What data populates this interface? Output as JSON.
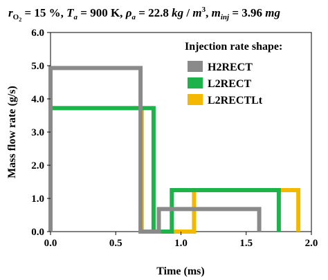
{
  "chart_data": {
    "type": "line",
    "title": "r_O2 = 15 %, T_a = 900 K, ρ_a = 22.8 kg / m^3, m_inj = 3.96 mg",
    "title_parts": {
      "r_main": "r",
      "r_sub": "O",
      "r_sub2": "2",
      "eq1": " = 15 %, ",
      "t_main": "T",
      "t_sub": "a",
      "eq2": " = 900 K, ",
      "rho_main": "ρ",
      "rho_sub": "a",
      "eq3": " = 22.8 ",
      "unit_kg": "kg",
      "unit_slash": " / ",
      "unit_m": "m",
      "unit_sup": "3",
      "comma": ", ",
      "m_main": "m",
      "m_sub": "inj",
      "eq4": " = 3.96 ",
      "unit_mg": "mg"
    },
    "xlabel": "Time (ms)",
    "ylabel": "Mass flow rate (g/s)",
    "xlim": [
      0,
      2.0
    ],
    "ylim": [
      0,
      6.0
    ],
    "xticks": [
      0.0,
      0.5,
      1.0,
      1.5,
      2.0
    ],
    "xtick_labels": [
      "0.0",
      "0.5",
      "1.0",
      "1.5",
      "2.0"
    ],
    "yticks": [
      0.0,
      1.0,
      2.0,
      3.0,
      4.0,
      5.0,
      6.0
    ],
    "ytick_labels": [
      "0.0",
      "1.0",
      "2.0",
      "3.0",
      "4.0",
      "5.0",
      "6.0"
    ],
    "grid": false,
    "legend": {
      "title": "Injection rate shape:",
      "placement": "top-right"
    },
    "series": [
      {
        "name": "L2RECTLt",
        "color": "#f5b800",
        "x": [
          0.0,
          0.0,
          0.7,
          0.7,
          0.81,
          0.81,
          1.1,
          1.1,
          1.9,
          1.9
        ],
        "y": [
          0.0,
          3.72,
          3.72,
          0.0,
          0.0,
          0.0,
          0.0,
          1.25,
          1.25,
          0.0
        ]
      },
      {
        "name": "L2RECT",
        "color": "#1db34a",
        "x": [
          0.0,
          0.0,
          0.79,
          0.79,
          0.93,
          0.93,
          1.75,
          1.75
        ],
        "y": [
          0.0,
          3.72,
          3.72,
          0.0,
          0.0,
          1.25,
          1.25,
          0.0
        ]
      },
      {
        "name": "H2RECT",
        "color": "#8a8a8a",
        "x": [
          0.0,
          0.0,
          0.69,
          0.69,
          0.83,
          0.83,
          1.6,
          1.6
        ],
        "y": [
          0.0,
          4.93,
          4.93,
          0.0,
          0.0,
          0.68,
          0.68,
          0.0
        ]
      }
    ],
    "legend_order": [
      "H2RECT",
      "L2RECT",
      "L2RECTLt"
    ]
  }
}
